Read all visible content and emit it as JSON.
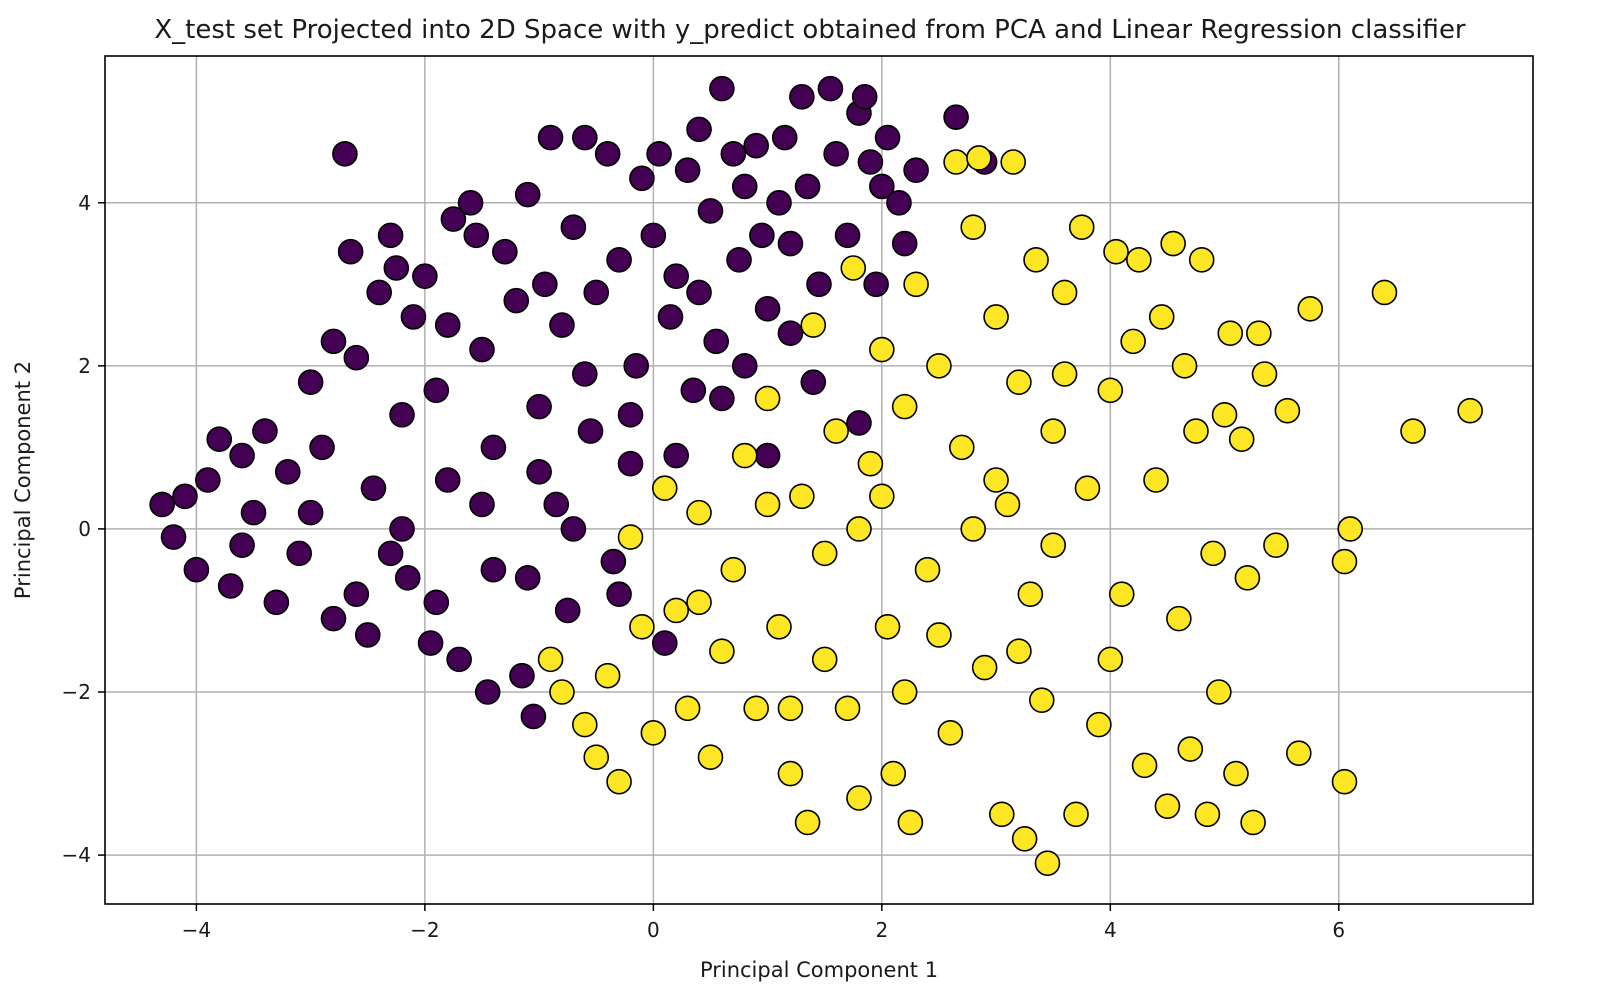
{
  "chart_data": {
    "type": "scatter",
    "title": "X_test set Projected into 2D Space with y_predict obtained from PCA and Linear Regression classifier",
    "xlabel": "Principal Component 1",
    "ylabel": "Principal Component 2",
    "xlim": [
      -4.8,
      7.7
    ],
    "ylim": [
      -4.6,
      5.8
    ],
    "xticks": [
      -4,
      -2,
      0,
      2,
      4,
      6
    ],
    "yticks": [
      -4,
      -2,
      0,
      2,
      4
    ],
    "xtick_labels": [
      "−4",
      "−2",
      "0",
      "2",
      "4",
      "6"
    ],
    "ytick_labels": [
      "−4",
      "−2",
      "0",
      "2",
      "4"
    ],
    "grid": true,
    "legend": "none",
    "series": [
      {
        "color": "#440154",
        "points": [
          [
            -4.3,
            0.3
          ],
          [
            -4.2,
            -0.1
          ],
          [
            -4.1,
            0.4
          ],
          [
            -4.0,
            -0.5
          ],
          [
            -3.9,
            0.6
          ],
          [
            -3.8,
            1.1
          ],
          [
            -3.7,
            -0.7
          ],
          [
            -3.6,
            0.9
          ],
          [
            -3.5,
            0.2
          ],
          [
            -3.4,
            1.2
          ],
          [
            -3.3,
            -0.9
          ],
          [
            -3.2,
            0.7
          ],
          [
            -3.1,
            -0.3
          ],
          [
            -3.0,
            1.8
          ],
          [
            -2.9,
            1.0
          ],
          [
            -2.8,
            2.3
          ],
          [
            -2.7,
            4.6
          ],
          [
            -2.65,
            3.4
          ],
          [
            -2.6,
            2.1
          ],
          [
            -2.5,
            -1.3
          ],
          [
            -2.45,
            0.5
          ],
          [
            -2.4,
            2.9
          ],
          [
            -2.3,
            3.6
          ],
          [
            -2.25,
            3.2
          ],
          [
            -2.2,
            1.4
          ],
          [
            -2.15,
            -0.6
          ],
          [
            -2.1,
            2.6
          ],
          [
            -2.0,
            3.1
          ],
          [
            -1.95,
            -1.4
          ],
          [
            -1.9,
            1.7
          ],
          [
            -1.8,
            2.5
          ],
          [
            -1.75,
            3.8
          ],
          [
            -1.7,
            -1.6
          ],
          [
            -1.6,
            4.0
          ],
          [
            -1.55,
            3.6
          ],
          [
            -1.5,
            2.2
          ],
          [
            -1.45,
            -2.0
          ],
          [
            -1.4,
            1.0
          ],
          [
            -1.3,
            3.4
          ],
          [
            -1.2,
            2.8
          ],
          [
            -1.15,
            -1.8
          ],
          [
            -1.1,
            4.1
          ],
          [
            -1.05,
            -2.3
          ],
          [
            -1.0,
            1.5
          ],
          [
            -0.95,
            3.0
          ],
          [
            -0.9,
            4.8
          ],
          [
            -0.85,
            0.3
          ],
          [
            -0.8,
            2.5
          ],
          [
            -0.75,
            -1.0
          ],
          [
            -0.7,
            3.7
          ],
          [
            -0.6,
            4.8
          ],
          [
            -0.55,
            1.2
          ],
          [
            -0.5,
            2.9
          ],
          [
            -0.4,
            4.6
          ],
          [
            -0.35,
            -0.4
          ],
          [
            -0.3,
            3.3
          ],
          [
            -0.2,
            0.8
          ],
          [
            -0.15,
            2.0
          ],
          [
            -0.1,
            4.3
          ],
          [
            0.0,
            3.6
          ],
          [
            0.05,
            4.6
          ],
          [
            0.1,
            -1.4
          ],
          [
            0.15,
            2.6
          ],
          [
            0.2,
            3.1
          ],
          [
            0.3,
            4.4
          ],
          [
            0.35,
            1.7
          ],
          [
            0.4,
            4.9
          ],
          [
            0.5,
            3.9
          ],
          [
            0.55,
            2.3
          ],
          [
            0.6,
            5.4
          ],
          [
            0.7,
            4.6
          ],
          [
            0.75,
            3.3
          ],
          [
            0.8,
            4.2
          ],
          [
            0.9,
            4.7
          ],
          [
            0.95,
            3.6
          ],
          [
            1.0,
            2.7
          ],
          [
            1.1,
            4.0
          ],
          [
            1.15,
            4.8
          ],
          [
            1.2,
            3.5
          ],
          [
            1.3,
            5.3
          ],
          [
            1.35,
            4.2
          ],
          [
            1.45,
            3.0
          ],
          [
            1.55,
            5.4
          ],
          [
            1.6,
            4.6
          ],
          [
            1.7,
            3.6
          ],
          [
            1.8,
            5.1
          ],
          [
            1.85,
            5.3
          ],
          [
            1.9,
            4.5
          ],
          [
            1.95,
            3.0
          ],
          [
            2.0,
            4.2
          ],
          [
            2.05,
            4.8
          ],
          [
            2.15,
            4.0
          ],
          [
            2.2,
            3.5
          ],
          [
            2.3,
            4.4
          ],
          [
            2.65,
            5.05
          ],
          [
            2.9,
            4.5
          ],
          [
            -3.6,
            -0.2
          ],
          [
            -3.0,
            0.2
          ],
          [
            -2.6,
            -0.8
          ],
          [
            -2.2,
            0.0
          ],
          [
            -1.8,
            0.6
          ],
          [
            -1.4,
            -0.5
          ],
          [
            -1.0,
            0.7
          ],
          [
            -0.6,
            1.9
          ],
          [
            -0.2,
            1.4
          ],
          [
            0.2,
            0.9
          ],
          [
            0.6,
            1.6
          ],
          [
            1.0,
            0.9
          ],
          [
            1.4,
            1.8
          ],
          [
            1.8,
            1.3
          ],
          [
            -2.8,
            -1.1
          ],
          [
            -2.3,
            -0.3
          ],
          [
            -1.9,
            -0.9
          ],
          [
            -1.5,
            0.3
          ],
          [
            -1.1,
            -0.6
          ],
          [
            -0.7,
            0.0
          ],
          [
            -0.3,
            -0.8
          ],
          [
            0.4,
            2.9
          ],
          [
            0.8,
            2.0
          ],
          [
            1.2,
            2.4
          ]
        ]
      },
      {
        "color": "#fde725",
        "points": [
          [
            -0.9,
            -1.6
          ],
          [
            -0.8,
            -2.0
          ],
          [
            -0.6,
            -2.4
          ],
          [
            -0.5,
            -2.8
          ],
          [
            -0.4,
            -1.8
          ],
          [
            -0.3,
            -3.1
          ],
          [
            -0.2,
            -0.1
          ],
          [
            -0.1,
            -1.2
          ],
          [
            0.0,
            -2.5
          ],
          [
            0.1,
            0.5
          ],
          [
            0.2,
            -1.0
          ],
          [
            0.3,
            -2.2
          ],
          [
            0.4,
            0.2
          ],
          [
            0.5,
            -2.8
          ],
          [
            0.6,
            -1.5
          ],
          [
            0.7,
            -0.5
          ],
          [
            0.8,
            0.9
          ],
          [
            0.9,
            -2.2
          ],
          [
            1.0,
            1.6
          ],
          [
            1.1,
            -1.2
          ],
          [
            1.2,
            -3.0
          ],
          [
            1.3,
            0.4
          ],
          [
            1.35,
            -3.6
          ],
          [
            1.4,
            2.5
          ],
          [
            1.5,
            -0.3
          ],
          [
            1.6,
            1.2
          ],
          [
            1.7,
            -2.2
          ],
          [
            1.75,
            3.2
          ],
          [
            1.8,
            -3.3
          ],
          [
            1.9,
            0.8
          ],
          [
            2.0,
            2.2
          ],
          [
            2.05,
            -1.2
          ],
          [
            2.1,
            -3.0
          ],
          [
            2.2,
            1.5
          ],
          [
            2.25,
            -3.6
          ],
          [
            2.3,
            3.0
          ],
          [
            2.4,
            -0.5
          ],
          [
            2.5,
            2.0
          ],
          [
            2.6,
            -2.5
          ],
          [
            2.65,
            4.5
          ],
          [
            2.7,
            1.0
          ],
          [
            2.8,
            3.7
          ],
          [
            2.85,
            4.55
          ],
          [
            2.9,
            -1.7
          ],
          [
            3.0,
            2.6
          ],
          [
            3.05,
            -3.5
          ],
          [
            3.1,
            0.3
          ],
          [
            3.15,
            4.5
          ],
          [
            3.2,
            1.8
          ],
          [
            3.25,
            -3.8
          ],
          [
            3.3,
            -0.8
          ],
          [
            3.35,
            3.3
          ],
          [
            3.4,
            -2.1
          ],
          [
            3.45,
            -4.1
          ],
          [
            3.5,
            1.2
          ],
          [
            3.6,
            2.9
          ],
          [
            3.7,
            -3.5
          ],
          [
            3.75,
            3.7
          ],
          [
            3.8,
            0.5
          ],
          [
            3.9,
            -2.4
          ],
          [
            4.0,
            1.7
          ],
          [
            4.05,
            3.4
          ],
          [
            4.1,
            -0.8
          ],
          [
            4.2,
            2.3
          ],
          [
            4.25,
            3.3
          ],
          [
            4.3,
            -2.9
          ],
          [
            4.4,
            0.6
          ],
          [
            4.45,
            2.6
          ],
          [
            4.5,
            -3.4
          ],
          [
            4.55,
            3.5
          ],
          [
            4.6,
            -1.1
          ],
          [
            4.65,
            2.0
          ],
          [
            4.7,
            -2.7
          ],
          [
            4.75,
            1.2
          ],
          [
            4.8,
            3.3
          ],
          [
            4.85,
            -3.5
          ],
          [
            4.9,
            -0.3
          ],
          [
            4.95,
            -2.0
          ],
          [
            5.0,
            1.4
          ],
          [
            5.05,
            2.4
          ],
          [
            5.1,
            -3.0
          ],
          [
            5.15,
            1.1
          ],
          [
            5.2,
            -0.6
          ],
          [
            5.25,
            -3.6
          ],
          [
            5.3,
            2.4
          ],
          [
            5.35,
            1.9
          ],
          [
            5.45,
            -0.2
          ],
          [
            5.55,
            1.45
          ],
          [
            5.65,
            -2.75
          ],
          [
            5.75,
            2.7
          ],
          [
            6.05,
            -3.1
          ],
          [
            6.05,
            -0.4
          ],
          [
            6.1,
            0.0
          ],
          [
            6.4,
            2.9
          ],
          [
            6.65,
            1.2
          ],
          [
            7.15,
            1.45
          ],
          [
            0.4,
            -0.9
          ],
          [
            1.0,
            0.3
          ],
          [
            1.5,
            -1.6
          ],
          [
            2.0,
            0.4
          ],
          [
            2.5,
            -1.3
          ],
          [
            3.0,
            0.6
          ],
          [
            3.5,
            -0.2
          ],
          [
            4.0,
            -1.6
          ],
          [
            1.2,
            -2.2
          ],
          [
            2.2,
            -2.0
          ],
          [
            3.2,
            -1.5
          ],
          [
            2.8,
            0.0
          ],
          [
            1.8,
            0.0
          ],
          [
            3.6,
            1.9
          ]
        ]
      }
    ]
  }
}
